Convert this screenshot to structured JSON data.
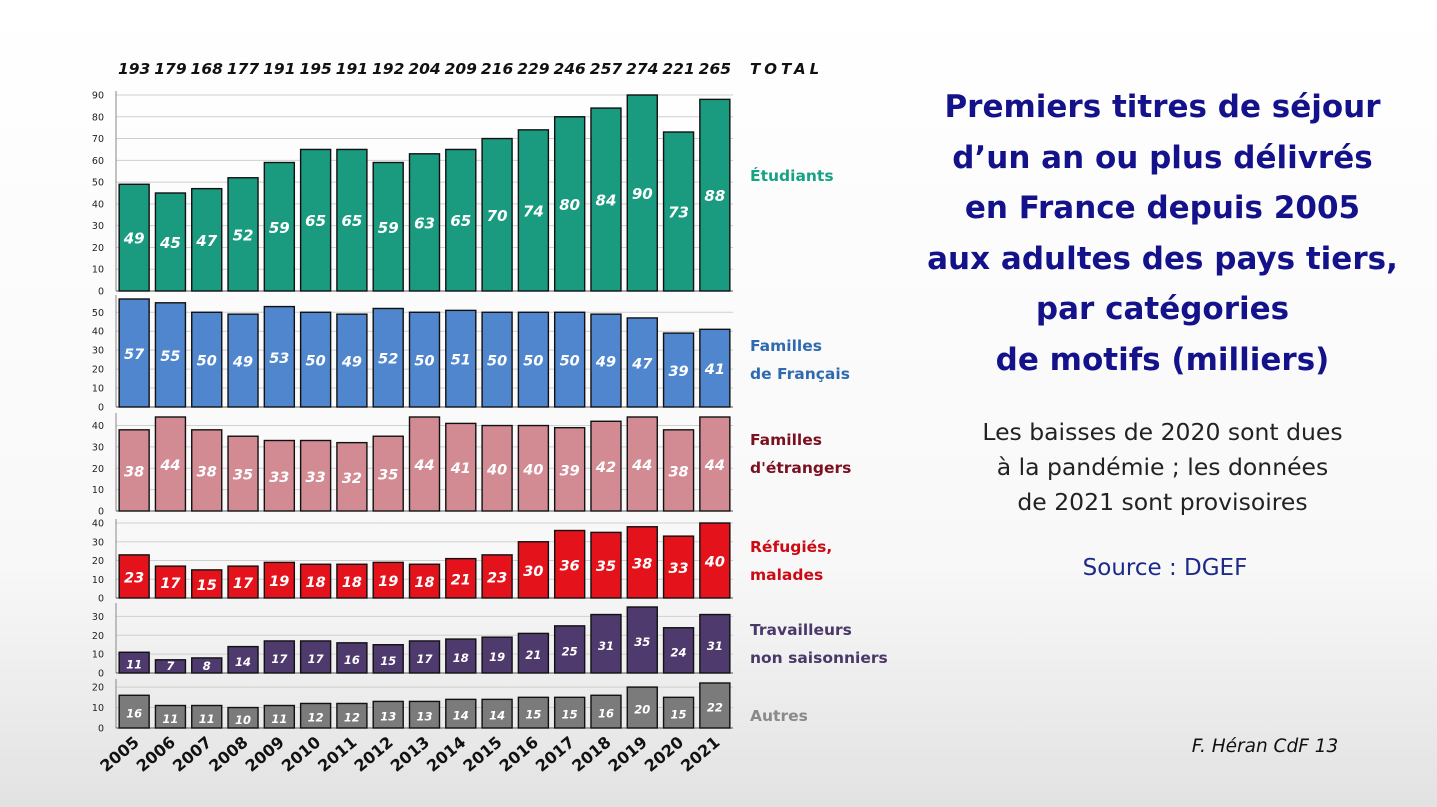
{
  "title_lines": [
    "Premiers titres de séjour",
    "d’un an ou plus délivrés",
    "en France depuis 2005",
    "aux adultes des pays tiers,",
    "par catégories",
    "de motifs (milliers)"
  ],
  "note_lines": [
    "Les baisses de 2020 sont dues",
    "à la pandémie ; les données",
    "de 2021 sont provisoires"
  ],
  "source": "Source : DGEF",
  "credit": "F. Héran CdF  13",
  "chart_data": {
    "type": "bar",
    "layout": "stacked-panels",
    "categories": [
      "2005",
      "2006",
      "2007",
      "2008",
      "2009",
      "2010",
      "2011",
      "2012",
      "2013",
      "2014",
      "2015",
      "2016",
      "2017",
      "2018",
      "2019",
      "2020",
      "2021"
    ],
    "totals_label": "TOTAL",
    "totals": [
      193,
      179,
      168,
      177,
      191,
      195,
      191,
      192,
      204,
      209,
      216,
      229,
      246,
      257,
      274,
      221,
      265
    ],
    "series": [
      {
        "name_lines": [
          "Étudiants"
        ],
        "color": "#1a9b7f",
        "label_color": "#17a383",
        "yticks": [
          "0",
          "10",
          "20",
          "30",
          "40",
          "50",
          "60",
          "70",
          "80",
          "90"
        ],
        "ylim": [
          0,
          90
        ],
        "values": [
          49,
          45,
          47,
          52,
          59,
          65,
          65,
          59,
          63,
          65,
          70,
          74,
          80,
          84,
          90,
          73,
          88
        ]
      },
      {
        "name_lines": [
          "Familles",
          "de Français"
        ],
        "color": "#4f86cd",
        "label_color": "#2f6ab0",
        "yticks": [
          "0",
          "10",
          "20",
          "30",
          "40",
          "50"
        ],
        "ylim": [
          0,
          57
        ],
        "values": [
          57,
          55,
          50,
          49,
          53,
          50,
          49,
          52,
          50,
          51,
          50,
          50,
          50,
          49,
          47,
          39,
          41
        ]
      },
      {
        "name_lines": [
          "Familles",
          "d'étrangers"
        ],
        "color": "#d38b93",
        "label_color": "#7b1020",
        "yticks": [
          "0",
          "10",
          "20",
          "30",
          "40"
        ],
        "ylim": [
          0,
          44
        ],
        "values": [
          38,
          44,
          38,
          35,
          33,
          33,
          32,
          35,
          44,
          41,
          40,
          40,
          39,
          42,
          44,
          38,
          44
        ]
      },
      {
        "name_lines": [
          "Réfugiés,",
          "malades"
        ],
        "color": "#e3121b",
        "label_color": "#cc0a14",
        "yticks": [
          "0",
          "10",
          "20",
          "30",
          "40"
        ],
        "ylim": [
          0,
          40
        ],
        "values": [
          23,
          17,
          15,
          17,
          19,
          18,
          18,
          19,
          18,
          21,
          23,
          30,
          36,
          35,
          38,
          33,
          40
        ]
      },
      {
        "name_lines": [
          "Travailleurs",
          "non saisonniers"
        ],
        "color": "#4f3a6e",
        "label_color": "#4a3868",
        "yticks": [
          "0",
          "10",
          "20",
          "30"
        ],
        "ylim": [
          0,
          35
        ],
        "values": [
          11,
          7,
          8,
          14,
          17,
          17,
          16,
          15,
          17,
          18,
          19,
          21,
          25,
          31,
          35,
          24,
          31
        ]
      },
      {
        "name_lines": [
          "Autres"
        ],
        "color": "#7b7b7b",
        "label_color": "#8a8a8a",
        "yticks": [
          "0",
          "10",
          "20"
        ],
        "ylim": [
          0,
          22
        ],
        "values": [
          16,
          11,
          11,
          10,
          11,
          12,
          12,
          13,
          13,
          14,
          14,
          15,
          15,
          16,
          20,
          15,
          22
        ]
      }
    ]
  }
}
